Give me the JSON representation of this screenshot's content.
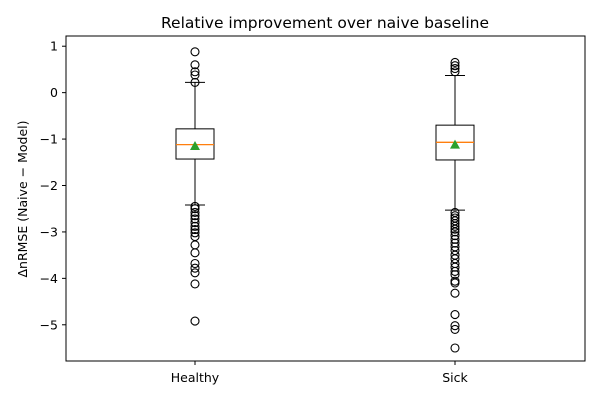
{
  "chart_data": {
    "type": "box",
    "title": "Relative improvement over naive baseline",
    "xlabel": "",
    "ylabel": "ΔnRMSE (Naive − Model)",
    "ylim": [
      -5.78,
      1.22
    ],
    "yticks": [
      1,
      0,
      -1,
      -2,
      -3,
      -4,
      -5
    ],
    "ytick_labels": [
      "1",
      "0",
      "−1",
      "−2",
      "−3",
      "−4",
      "−5"
    ],
    "categories": [
      "Healthy",
      "Sick"
    ],
    "boxes": [
      {
        "name": "Healthy",
        "q1": -1.43,
        "median": -1.12,
        "q3": -0.78,
        "whisker_low": -2.42,
        "whisker_high": 0.22,
        "mean": -1.15,
        "outliers": [
          0.88,
          0.6,
          0.45,
          0.38,
          0.22,
          -2.45,
          -2.5,
          -2.58,
          -2.65,
          -2.72,
          -2.8,
          -2.88,
          -2.95,
          -3.02,
          -3.1,
          -3.28,
          -3.45,
          -3.68,
          -3.78,
          -3.88,
          -4.12,
          -4.92
        ]
      },
      {
        "name": "Sick",
        "q1": -1.45,
        "median": -1.07,
        "q3": -0.7,
        "whisker_low": -2.53,
        "whisker_high": 0.37,
        "mean": -1.12,
        "outliers": [
          0.65,
          0.58,
          0.52,
          0.45,
          -2.58,
          -2.65,
          -2.7,
          -2.76,
          -2.82,
          -2.88,
          -2.94,
          -3.0,
          -3.08,
          -3.16,
          -3.24,
          -3.32,
          -3.4,
          -3.5,
          -3.58,
          -3.68,
          -3.76,
          -3.85,
          -3.92,
          -4.06,
          -4.1,
          -4.32,
          -4.78,
          -5.02,
          -5.1,
          -5.5
        ]
      }
    ],
    "grid": false,
    "colors": {
      "box": "#000000",
      "median": "#ff7f0e",
      "mean": "#2ca02c",
      "outlier": "#000000"
    }
  }
}
